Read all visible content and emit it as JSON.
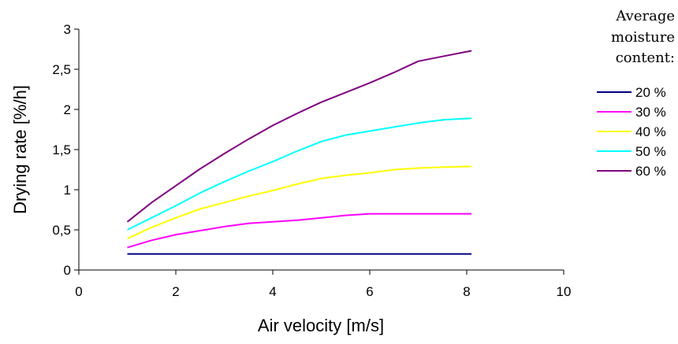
{
  "chart_data": {
    "type": "line",
    "title": "",
    "xlabel": "Air velocity [m/s]",
    "ylabel": "Drying rate [%/h]",
    "xlim": [
      0,
      10
    ],
    "ylim": [
      0,
      3
    ],
    "x_ticks": [
      0,
      2,
      4,
      6,
      8,
      10
    ],
    "y_ticks": [
      0,
      0.5,
      1,
      1.5,
      2,
      2.5,
      3
    ],
    "x_tick_labels": [
      "0",
      "2",
      "4",
      "6",
      "8",
      "10"
    ],
    "y_tick_labels": [
      "0",
      "0,5",
      "1",
      "1,5",
      "2",
      "2,5",
      "3"
    ],
    "grid": false,
    "legend_title_lines": [
      "Average",
      "moisture",
      "content:"
    ],
    "legend_position": "right",
    "series": [
      {
        "name": "20 %",
        "color": "#000080",
        "x": [
          1,
          2,
          3,
          4,
          5,
          6,
          7,
          8.1
        ],
        "y": [
          0.2,
          0.2,
          0.2,
          0.2,
          0.2,
          0.2,
          0.2,
          0.2
        ]
      },
      {
        "name": "30 %",
        "color": "#FF00FF",
        "x": [
          1,
          1.5,
          2,
          2.5,
          3,
          3.5,
          4,
          4.5,
          5,
          5.5,
          6,
          6.5,
          7,
          7.5,
          8.1
        ],
        "y": [
          0.28,
          0.37,
          0.44,
          0.49,
          0.54,
          0.58,
          0.6,
          0.62,
          0.65,
          0.68,
          0.7,
          0.7,
          0.7,
          0.7,
          0.7
        ]
      },
      {
        "name": "40 %",
        "color": "#FFFF00",
        "x": [
          1,
          1.5,
          2,
          2.5,
          3,
          3.5,
          4,
          4.5,
          5,
          5.5,
          6,
          6.5,
          7,
          7.5,
          8.1
        ],
        "y": [
          0.39,
          0.53,
          0.65,
          0.76,
          0.84,
          0.92,
          0.99,
          1.07,
          1.14,
          1.18,
          1.21,
          1.25,
          1.27,
          1.28,
          1.29
        ]
      },
      {
        "name": "50 %",
        "color": "#00FFFF",
        "x": [
          1,
          1.5,
          2,
          2.5,
          3,
          3.5,
          4,
          4.5,
          5,
          5.5,
          6,
          6.5,
          7,
          7.5,
          8.1
        ],
        "y": [
          0.5,
          0.65,
          0.8,
          0.96,
          1.1,
          1.23,
          1.35,
          1.48,
          1.6,
          1.68,
          1.73,
          1.78,
          1.83,
          1.87,
          1.89
        ]
      },
      {
        "name": "60 %",
        "color": "#800080",
        "x": [
          1,
          1.5,
          2,
          2.5,
          3,
          3.5,
          4,
          4.5,
          5,
          5.5,
          6,
          6.5,
          7,
          7.5,
          8.1
        ],
        "y": [
          0.6,
          0.84,
          1.05,
          1.26,
          1.45,
          1.63,
          1.8,
          1.95,
          2.09,
          2.21,
          2.33,
          2.46,
          2.6,
          2.66,
          2.73
        ]
      }
    ]
  }
}
